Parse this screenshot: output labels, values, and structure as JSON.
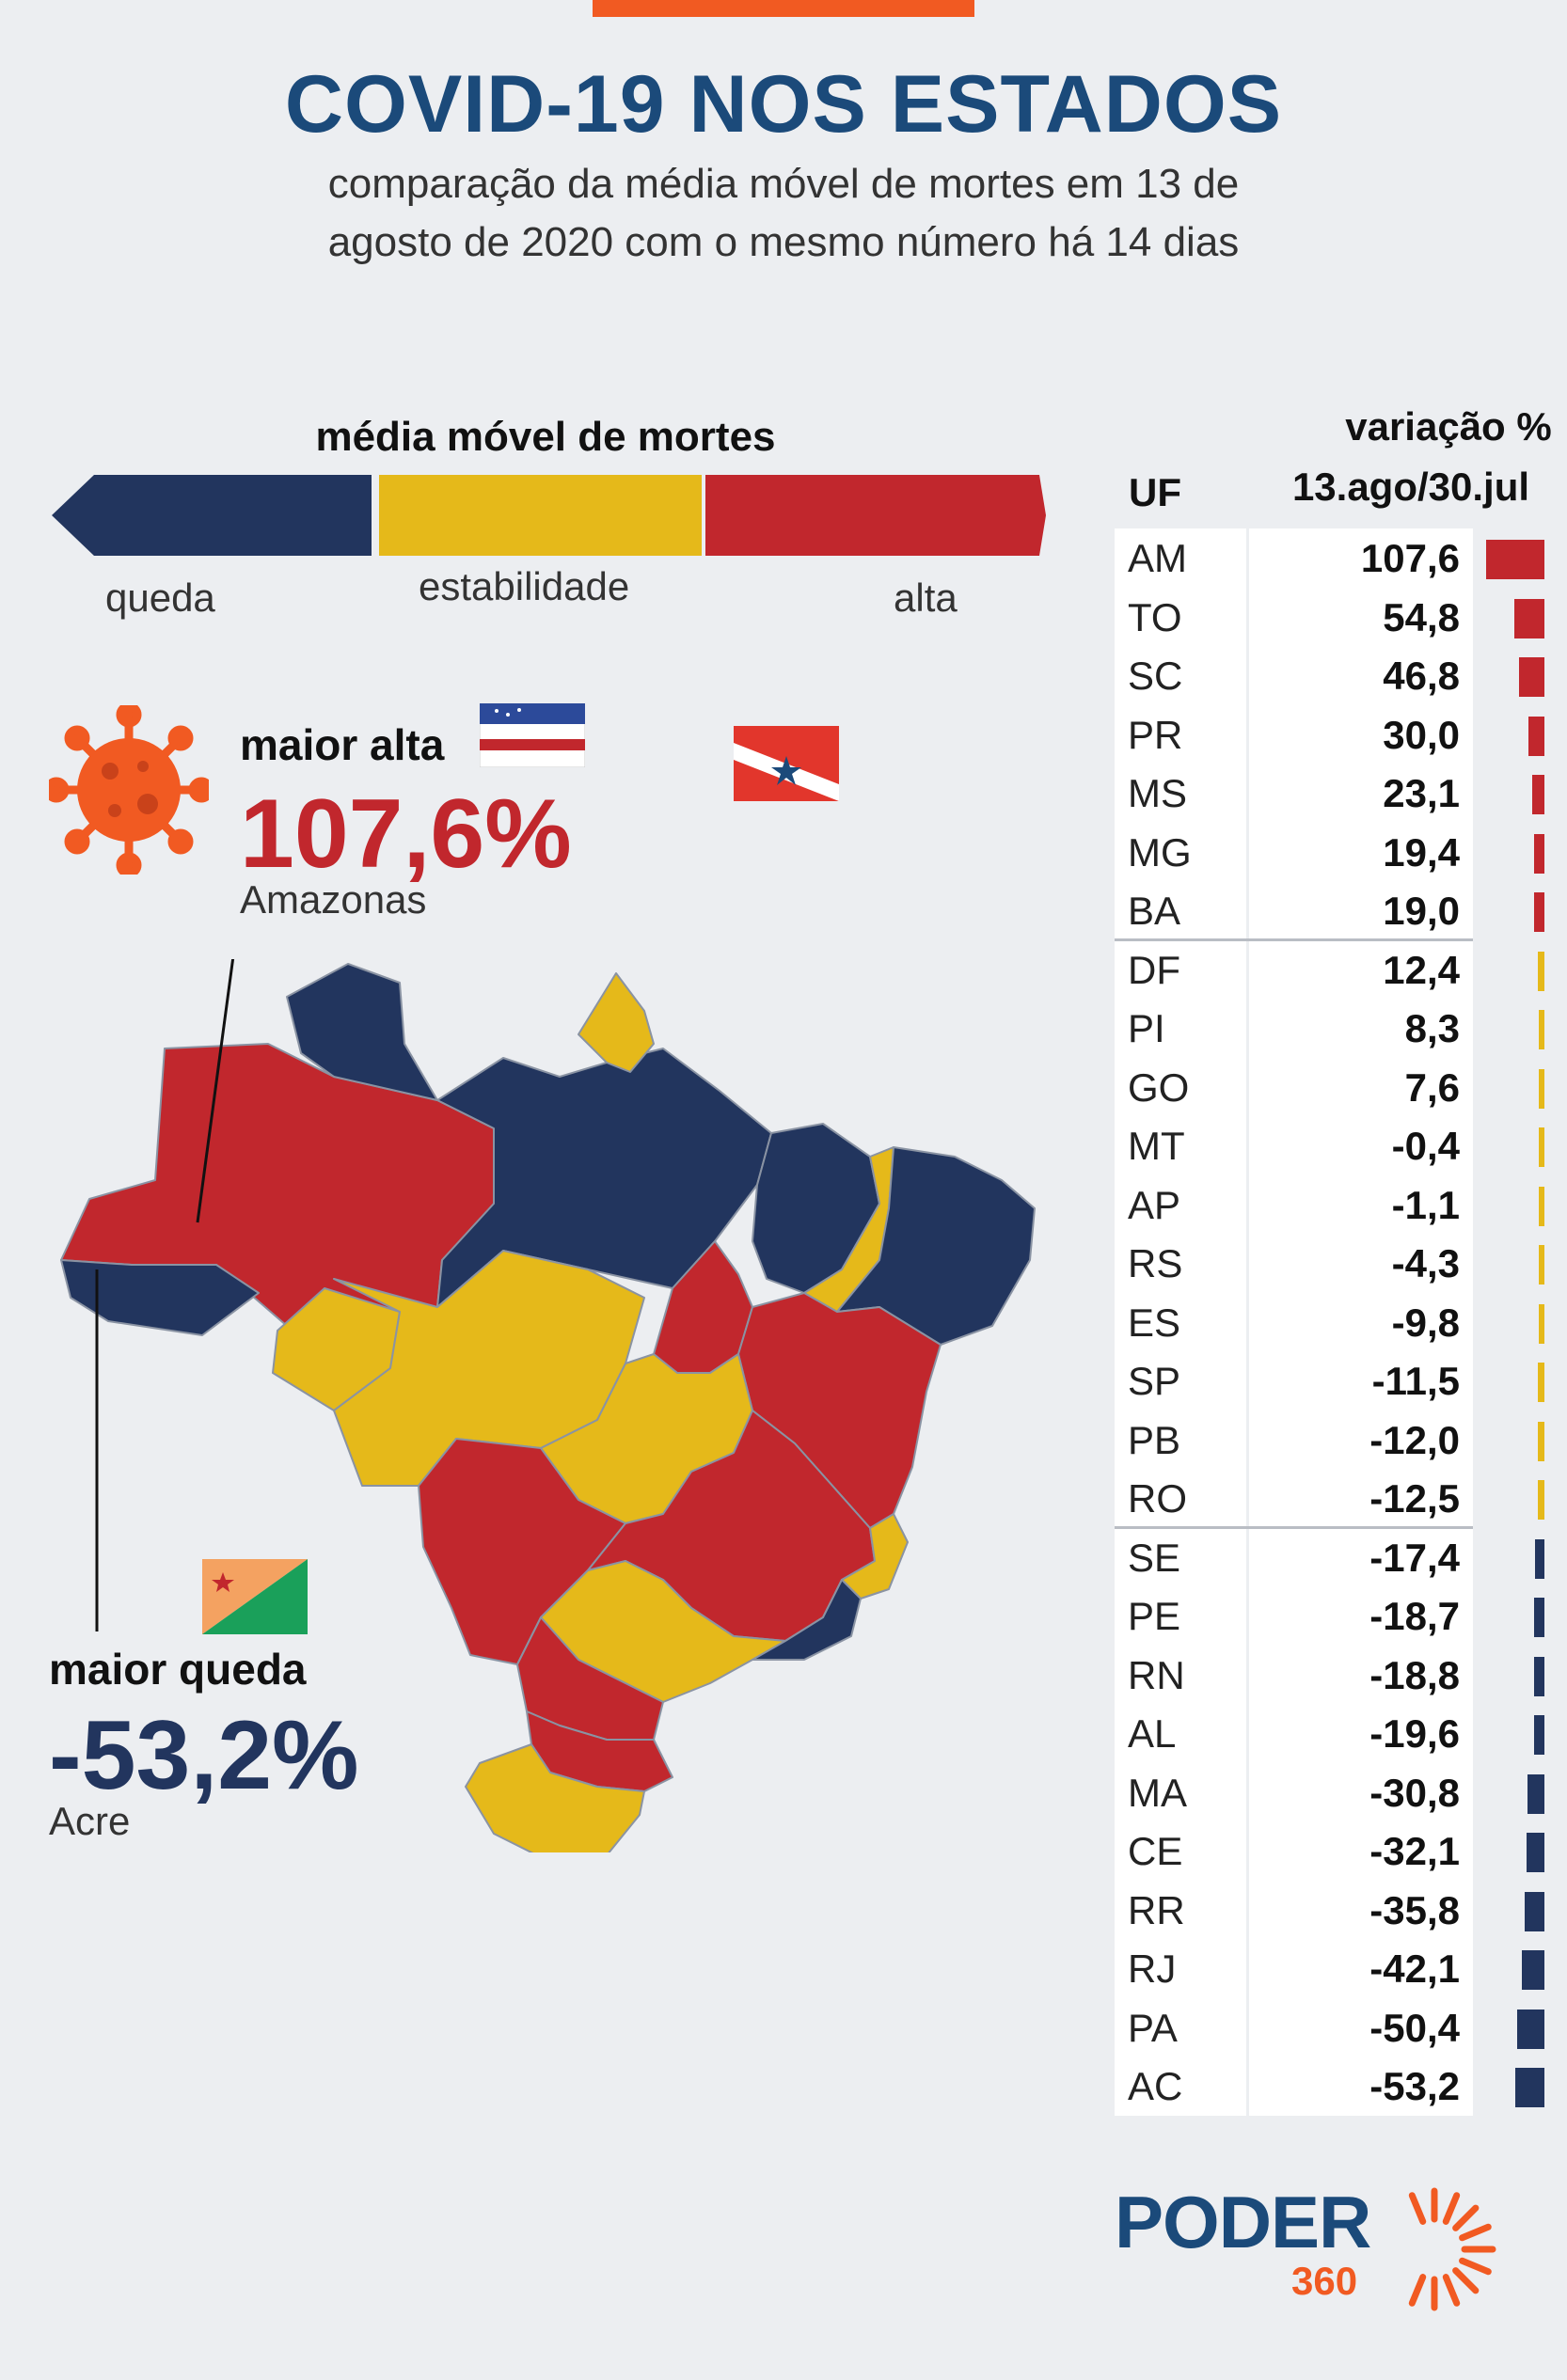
{
  "header": {
    "title": "COVID-19 NOS ESTADOS",
    "subtitle_line1": "comparação da média móvel de mortes em 13 de",
    "subtitle_line2": "agosto de 2020 com o mesmo número há 14 dias"
  },
  "legend": {
    "title": "média móvel de mortes",
    "items": [
      {
        "label": "queda",
        "color": "#22355e"
      },
      {
        "label": "estabilidade",
        "color": "#e5b91a"
      },
      {
        "label": "alta",
        "color": "#c1272d"
      }
    ]
  },
  "callouts": {
    "max_rise": {
      "label": "maior alta",
      "value": "107,6%",
      "state": "Amazonas"
    },
    "max_drop": {
      "label": "maior queda",
      "value": "-53,2%",
      "state": "Acre"
    }
  },
  "table": {
    "header_uf": "UF",
    "header_variation": "variação %",
    "header_period": "13.ago/30.jul"
  },
  "chart_data": {
    "type": "bar",
    "categories": [
      "AM",
      "TO",
      "SC",
      "PR",
      "MS",
      "MG",
      "BA",
      "DF",
      "PI",
      "GO",
      "MT",
      "AP",
      "RS",
      "ES",
      "SP",
      "PB",
      "RO",
      "SE",
      "PE",
      "RN",
      "AL",
      "MA",
      "CE",
      "RR",
      "RJ",
      "PA",
      "AC"
    ],
    "values": [
      107.6,
      54.8,
      46.8,
      30.0,
      23.1,
      19.4,
      19.0,
      12.4,
      8.3,
      7.6,
      -0.4,
      -1.1,
      -4.3,
      -9.8,
      -11.5,
      -12.0,
      -12.5,
      -17.4,
      -18.7,
      -18.8,
      -19.6,
      -30.8,
      -32.1,
      -35.8,
      -42.1,
      -50.4,
      -53.2
    ],
    "labels": [
      "107,6",
      "54,8",
      "46,8",
      "30,0",
      "23,1",
      "19,4",
      "19,0",
      "12,4",
      "8,3",
      "7,6",
      "-0,4",
      "-1,1",
      "-4,3",
      "-9,8",
      "-11,5",
      "-12,0",
      "-12,5",
      "-17,4",
      "-18,7",
      "-18,8",
      "-19,6",
      "-30,8",
      "-32,1",
      "-35,8",
      "-42,1",
      "-50,4",
      "-53,2"
    ],
    "groups": [
      "alta",
      "alta",
      "alta",
      "alta",
      "alta",
      "alta",
      "alta",
      "estabilidade",
      "estabilidade",
      "estabilidade",
      "estabilidade",
      "estabilidade",
      "estabilidade",
      "estabilidade",
      "estabilidade",
      "estabilidade",
      "estabilidade",
      "queda",
      "queda",
      "queda",
      "queda",
      "queda",
      "queda",
      "queda",
      "queda",
      "queda",
      "queda"
    ],
    "colors": {
      "alta": "#c1272d",
      "estabilidade": "#e5b91a",
      "queda": "#22355e"
    }
  },
  "map_colors": {
    "alta": "#c1272d",
    "estabilidade": "#e5b91a",
    "queda": "#22355e",
    "border": "#8a93a3"
  },
  "logo": {
    "brand": "PODER",
    "number": "360",
    "accent": "#f15a22",
    "primary": "#1b4a7a"
  }
}
